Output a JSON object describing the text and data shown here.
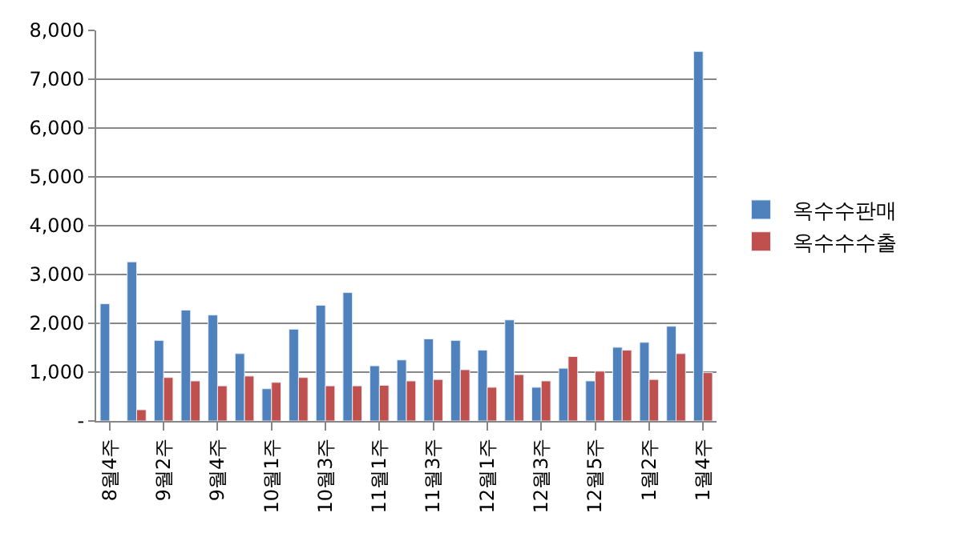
{
  "chart_data": {
    "type": "bar",
    "categories": [
      "8월4주",
      null,
      "9월2주",
      null,
      "9월4주",
      null,
      "10월1주",
      null,
      "10월3주",
      null,
      "11월1주",
      null,
      "11월3주",
      null,
      "12월1주",
      null,
      "12월3주",
      null,
      "12월5주",
      null,
      "1월2주",
      null,
      "1월4주"
    ],
    "series": [
      {
        "name": "옥수수판매",
        "color": "#4f81bd",
        "values": [
          2400,
          3260,
          1650,
          2270,
          2170,
          1380,
          660,
          1880,
          2370,
          2630,
          1130,
          1250,
          1680,
          1650,
          1450,
          2070,
          690,
          1080,
          820,
          1510,
          1610,
          1940,
          7570
        ]
      },
      {
        "name": "옥수수수출",
        "color": "#c0504d",
        "values": [
          null,
          230,
          890,
          820,
          720,
          920,
          790,
          890,
          720,
          720,
          730,
          820,
          850,
          1050,
          690,
          950,
          820,
          1320,
          1020,
          1450,
          850,
          1380,
          990
        ]
      }
    ],
    "ylim": [
      0,
      8000
    ],
    "yticks": [
      {
        "value": 0,
        "label": "-"
      },
      {
        "value": 1000,
        "label": "1,000"
      },
      {
        "value": 2000,
        "label": "2,000"
      },
      {
        "value": 3000,
        "label": "3,000"
      },
      {
        "value": 4000,
        "label": "4,000"
      },
      {
        "value": 5000,
        "label": "5,000"
      },
      {
        "value": 6000,
        "label": "6,000"
      },
      {
        "value": 7000,
        "label": "7,000"
      },
      {
        "value": 8000,
        "label": "8,000"
      }
    ],
    "grid": "y",
    "legend": "right"
  }
}
